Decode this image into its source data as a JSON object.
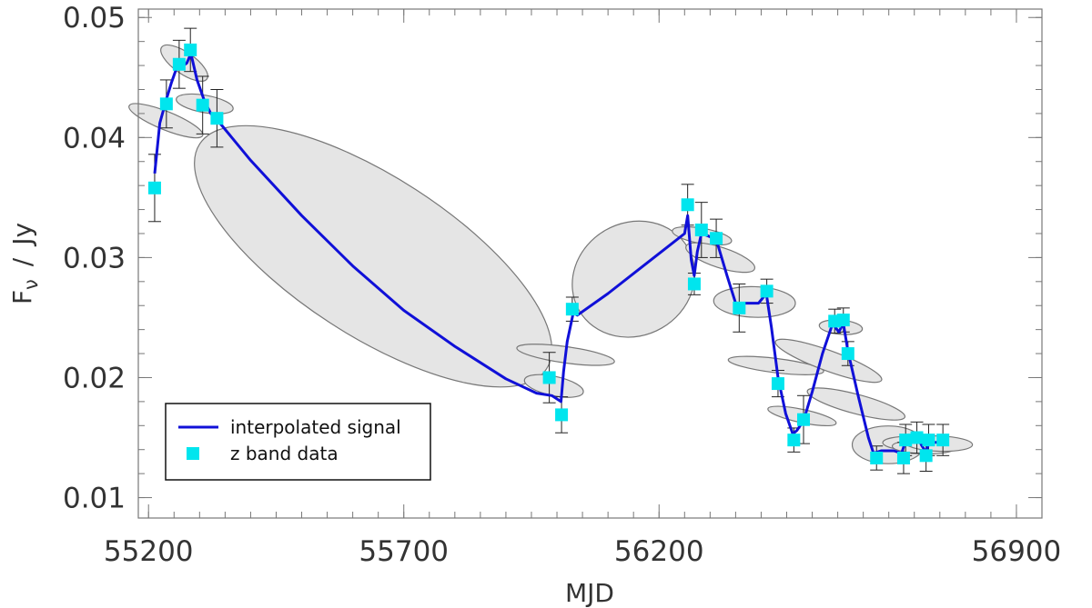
{
  "chart_data": {
    "type": "line",
    "xlabel": "MJD",
    "ylabel": "F",
    "ylabel_sub": "ν",
    "ylabel_unit": "Jy",
    "ylabel_sep": "/",
    "xlim": [
      55180,
      56950
    ],
    "ylim": [
      0.0083,
      0.0507
    ],
    "xticks": [
      55200,
      55700,
      56200,
      56900
    ],
    "xtick_labels": [
      "55200",
      "55700",
      "56200",
      "56900"
    ],
    "xminor_step": 50,
    "yticks": [
      0.01,
      0.02,
      0.03,
      0.04,
      0.05
    ],
    "ytick_labels": [
      "0.01",
      "0.02",
      "0.03",
      "0.04",
      "0.05"
    ],
    "yminor_step": 0.002,
    "grid": false,
    "legend_position": "bottom-left",
    "series": [
      {
        "name": "z band data",
        "style": "square-marker",
        "color": "#00e5ee",
        "points": [
          {
            "x": 55212,
            "y": 0.0358,
            "err": 0.0028
          },
          {
            "x": 55235,
            "y": 0.0428,
            "err": 0.002
          },
          {
            "x": 55260,
            "y": 0.0461,
            "err": 0.002
          },
          {
            "x": 55282,
            "y": 0.0473,
            "err": 0.0018
          },
          {
            "x": 55306,
            "y": 0.0427,
            "err": 0.0024
          },
          {
            "x": 55334,
            "y": 0.0416,
            "err": 0.0024
          },
          {
            "x": 55985,
            "y": 0.02,
            "err": 0.0021
          },
          {
            "x": 56009,
            "y": 0.0169,
            "err": 0.0015
          },
          {
            "x": 56030,
            "y": 0.0257,
            "err": 0.001
          },
          {
            "x": 56256,
            "y": 0.0344,
            "err": 0.0017
          },
          {
            "x": 56269,
            "y": 0.0278,
            "err": 0.0009
          },
          {
            "x": 56283,
            "y": 0.0323,
            "err": 0.0023
          },
          {
            "x": 56312,
            "y": 0.0316,
            "err": 0.0016
          },
          {
            "x": 56357,
            "y": 0.0258,
            "err": 0.002
          },
          {
            "x": 56411,
            "y": 0.0272,
            "err": 0.001
          },
          {
            "x": 56433,
            "y": 0.0195,
            "err": 0.0011
          },
          {
            "x": 56464,
            "y": 0.0148,
            "err": 0.001
          },
          {
            "x": 56483,
            "y": 0.0165,
            "err": 0.002
          },
          {
            "x": 56544,
            "y": 0.0247,
            "err": 0.001
          },
          {
            "x": 56561,
            "y": 0.0248,
            "err": 0.001
          },
          {
            "x": 56570,
            "y": 0.022,
            "err": 0.001
          },
          {
            "x": 56626,
            "y": 0.0133,
            "err": 0.001
          },
          {
            "x": 56679,
            "y": 0.0133,
            "err": 0.0013
          },
          {
            "x": 56683,
            "y": 0.0148,
            "err": 0.0013
          },
          {
            "x": 56705,
            "y": 0.015,
            "err": 0.0013
          },
          {
            "x": 56723,
            "y": 0.0135,
            "err": 0.0013
          },
          {
            "x": 56728,
            "y": 0.0148,
            "err": 0.0013
          },
          {
            "x": 56756,
            "y": 0.0148,
            "err": 0.0013
          }
        ]
      },
      {
        "name": "interpolated signal",
        "style": "line",
        "color": "#1010d8",
        "points": [
          [
            55212,
            0.037
          ],
          [
            55222,
            0.0412
          ],
          [
            55235,
            0.0432
          ],
          [
            55245,
            0.0446
          ],
          [
            55255,
            0.0458
          ],
          [
            55265,
            0.0459
          ],
          [
            55275,
            0.0462
          ],
          [
            55283,
            0.047
          ],
          [
            55295,
            0.0448
          ],
          [
            55310,
            0.043
          ],
          [
            55322,
            0.042
          ],
          [
            55334,
            0.0415
          ],
          [
            55400,
            0.0381
          ],
          [
            55500,
            0.0335
          ],
          [
            55600,
            0.0293
          ],
          [
            55700,
            0.0256
          ],
          [
            55800,
            0.0226
          ],
          [
            55900,
            0.0199
          ],
          [
            55960,
            0.0187
          ],
          [
            55990,
            0.0185
          ],
          [
            56008,
            0.018
          ],
          [
            56013,
            0.0205
          ],
          [
            56020,
            0.023
          ],
          [
            56032,
            0.0254
          ],
          [
            56040,
            0.0252
          ],
          [
            56100,
            0.027
          ],
          [
            56160,
            0.029
          ],
          [
            56220,
            0.031
          ],
          [
            56250,
            0.032
          ],
          [
            56256,
            0.0335
          ],
          [
            56263,
            0.0298
          ],
          [
            56269,
            0.0285
          ],
          [
            56275,
            0.0305
          ],
          [
            56283,
            0.032
          ],
          [
            56296,
            0.0318
          ],
          [
            56312,
            0.0315
          ],
          [
            56333,
            0.0285
          ],
          [
            56350,
            0.0262
          ],
          [
            56370,
            0.0262
          ],
          [
            56395,
            0.0262
          ],
          [
            56410,
            0.027
          ],
          [
            56420,
            0.0242
          ],
          [
            56433,
            0.02
          ],
          [
            56448,
            0.017
          ],
          [
            56462,
            0.0153
          ],
          [
            56470,
            0.0156
          ],
          [
            56483,
            0.0164
          ],
          [
            56500,
            0.0188
          ],
          [
            56520,
            0.022
          ],
          [
            56540,
            0.0245
          ],
          [
            56552,
            0.0238
          ],
          [
            56561,
            0.0245
          ],
          [
            56570,
            0.0222
          ],
          [
            56590,
            0.0185
          ],
          [
            56610,
            0.015
          ],
          [
            56620,
            0.0137
          ],
          [
            56635,
            0.0139
          ],
          [
            56660,
            0.0139
          ],
          [
            56675,
            0.0137
          ],
          [
            56683,
            0.0147
          ],
          [
            56695,
            0.0148
          ],
          [
            56705,
            0.0151
          ],
          [
            56715,
            0.0143
          ],
          [
            56723,
            0.0138
          ],
          [
            56729,
            0.0146
          ],
          [
            56740,
            0.0146
          ],
          [
            56756,
            0.0146
          ]
        ]
      }
    ],
    "confidence_ellipses": [
      {
        "cx": 55234,
        "cy": 0.0414,
        "rx": 18,
        "ry": 0.0033,
        "angle": -68
      },
      {
        "cx": 55270,
        "cy": 0.0462,
        "rx": 21,
        "ry": 0.0023,
        "angle": -55
      },
      {
        "cx": 55310,
        "cy": 0.0428,
        "rx": 17,
        "ry": 0.0024,
        "angle": -80
      },
      {
        "cx": 55640,
        "cy": 0.0301,
        "rx": 405,
        "ry": 0.0066,
        "angle": 33
      },
      {
        "cx": 55994,
        "cy": 0.0193,
        "rx": 19,
        "ry": 0.0025,
        "angle": -78
      },
      {
        "cx": 56017,
        "cy": 0.0219,
        "rx": 16,
        "ry": 0.0041,
        "angle": -82
      },
      {
        "cx": 56150,
        "cy": 0.0282,
        "rx": 123,
        "ry": 0.0047,
        "angle": -30
      },
      {
        "cx": 56284,
        "cy": 0.0318,
        "rx": 15,
        "ry": 0.0025,
        "angle": -80
      },
      {
        "cx": 56320,
        "cy": 0.03,
        "rx": 20,
        "ry": 0.003,
        "angle": -72
      },
      {
        "cx": 56387,
        "cy": 0.0263,
        "rx": 30,
        "ry": 0.0034,
        "angle": -88
      },
      {
        "cx": 56429,
        "cy": 0.021,
        "rx": 14,
        "ry": 0.004,
        "angle": -83
      },
      {
        "cx": 56480,
        "cy": 0.0168,
        "rx": 13,
        "ry": 0.0029,
        "angle": -78
      },
      {
        "cx": 56532,
        "cy": 0.0214,
        "rx": 20,
        "ry": 0.0047,
        "angle": -70
      },
      {
        "cx": 56556,
        "cy": 0.0242,
        "rx": 14,
        "ry": 0.0018,
        "angle": -85
      },
      {
        "cx": 56586,
        "cy": 0.0178,
        "rx": 19,
        "ry": 0.0042,
        "angle": -75
      },
      {
        "cx": 56649,
        "cy": 0.0144,
        "rx": 37,
        "ry": 0.003,
        "angle": -90
      },
      {
        "cx": 56697,
        "cy": 0.0145,
        "rx": 14,
        "ry": 0.0025,
        "angle": -88
      },
      {
        "cx": 56718,
        "cy": 0.0142,
        "rx": 13,
        "ry": 0.0026,
        "angle": -88
      },
      {
        "cx": 56748,
        "cy": 0.0145,
        "rx": 15,
        "ry": 0.0028,
        "angle": -88
      }
    ],
    "colors": {
      "ellipse_fill": "#e5e5e5",
      "ellipse_stroke": "#777777",
      "error_bar": "#222222",
      "axis": "#777777"
    }
  }
}
